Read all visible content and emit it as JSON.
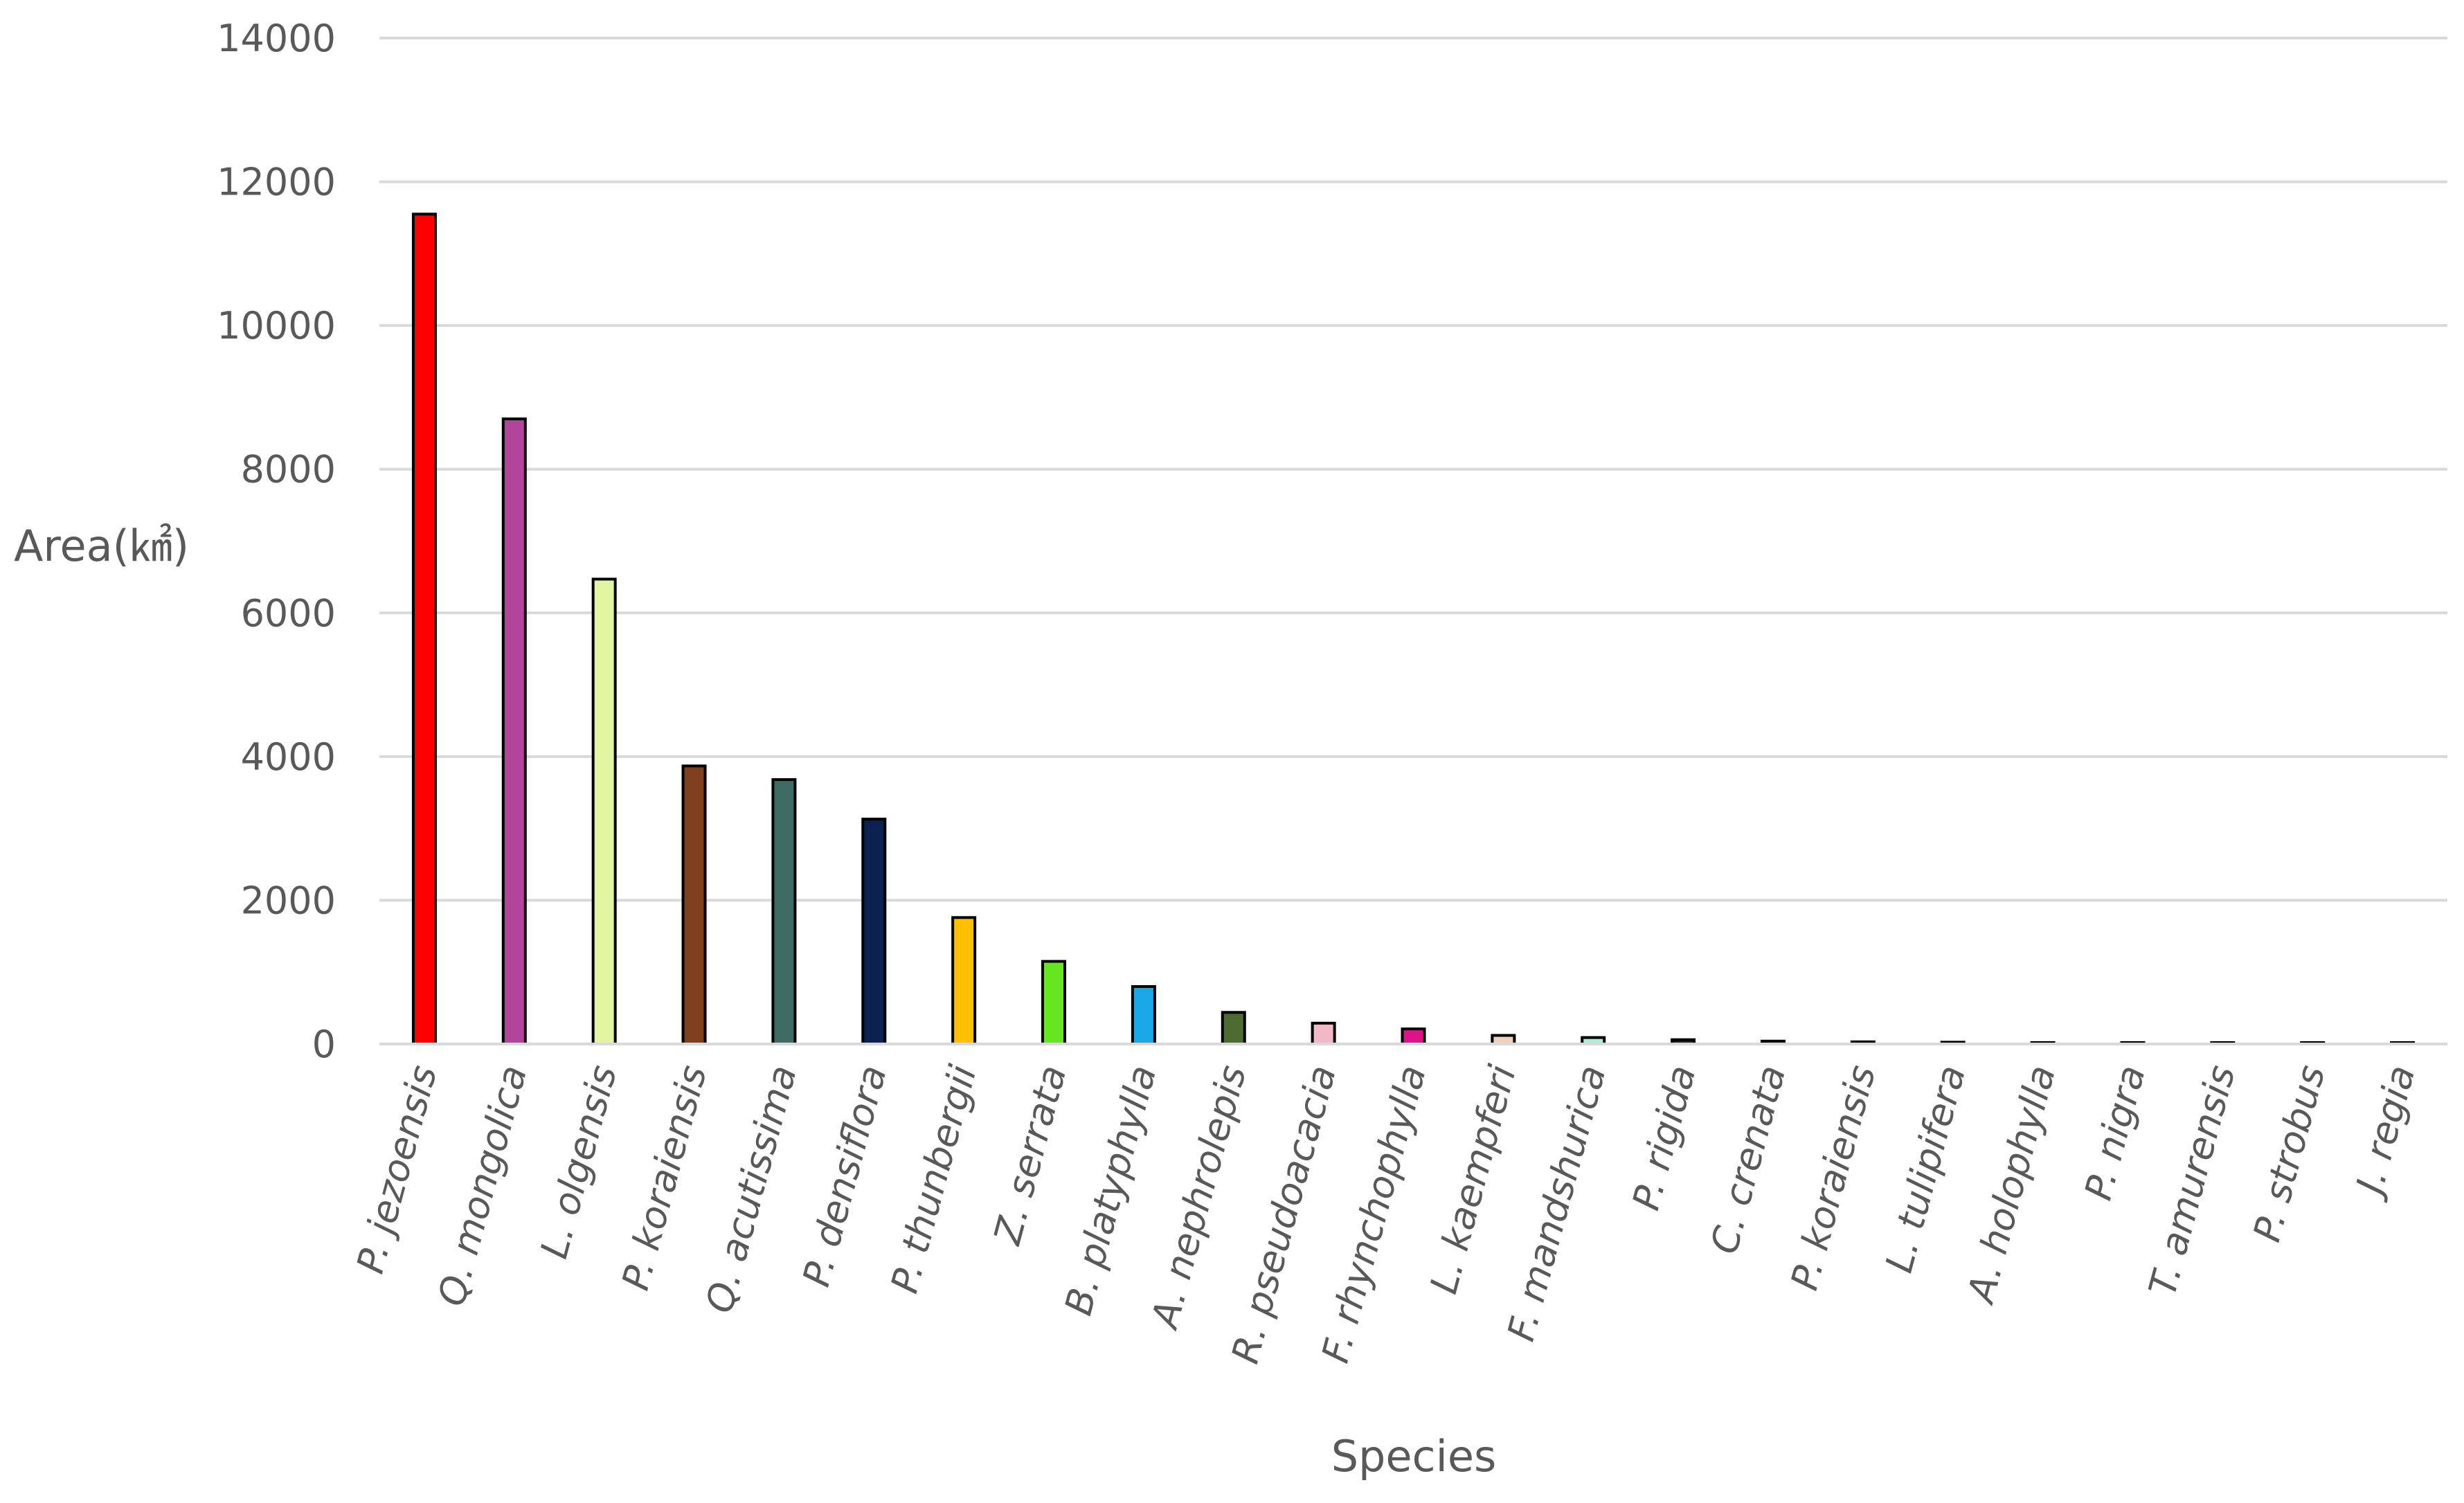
{
  "chart_data": {
    "type": "bar",
    "title": "",
    "xlabel": "Species",
    "ylabel": "Area(㎢)",
    "ylim": [
      0,
      14000
    ],
    "yticks": [
      0,
      2000,
      4000,
      6000,
      8000,
      10000,
      12000,
      14000
    ],
    "grid": true,
    "legend": "none",
    "categories": [
      "P. jezoensis",
      "Q. mongolica",
      "L. olgensis",
      "P. koraiensis",
      "Q. acutissima",
      "P. densiflora",
      "P. thunbergii",
      "Z. serrata",
      "B. platyphylla",
      "A. nephrolepis",
      "R. pseudoacacia",
      "F. rhynchophylla",
      "L. kaempferi",
      "F. mandshurica",
      "P. rigida",
      "C. crenata",
      "P. koraiensis",
      "L. tulipifera",
      "A. holophylla",
      "P. nigra",
      "T. amurensis",
      "P. strobus",
      "J. regia"
    ],
    "values": [
      11550,
      8700,
      6470,
      3870,
      3680,
      3130,
      1760,
      1150,
      800,
      440,
      290,
      210,
      120,
      90,
      60,
      40,
      30,
      25,
      20,
      20,
      15,
      5,
      3
    ],
    "colors": [
      "#ff0000",
      "#b2449b",
      "#e2f5a2",
      "#7f3f1c",
      "#3e6c64",
      "#0c2152",
      "#ffc000",
      "#66e61e",
      "#1aa7e8",
      "#4e6b32",
      "#f2b8c6",
      "#e0128a",
      "#f0d0b8",
      "#a6f0dc",
      "#222222",
      "#444444",
      "#666666",
      "#666666",
      "#666666",
      "#666666",
      "#666666",
      "#888888",
      "#888888"
    ],
    "bar_outline": "#000000",
    "gridline_color": "#d9d9d9",
    "text_color": "#595959"
  }
}
